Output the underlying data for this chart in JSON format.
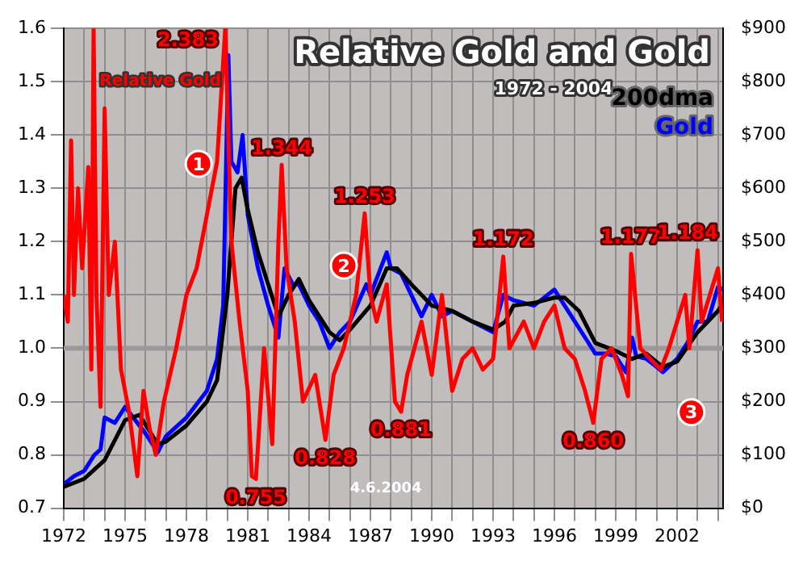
{
  "chart_data": {
    "type": "line",
    "title": "Relative Gold and Gold",
    "subtitle": "1972 - 2004",
    "xlim": [
      1972,
      2004.25
    ],
    "xticks": [
      {
        "value": 1972,
        "label": "1972"
      },
      {
        "value": 1973,
        "label": null
      },
      {
        "value": 1974,
        "label": null
      },
      {
        "value": 1975,
        "label": "1975"
      },
      {
        "value": 1976,
        "label": null
      },
      {
        "value": 1977,
        "label": null
      },
      {
        "value": 1978,
        "label": "1978"
      },
      {
        "value": 1979,
        "label": null
      },
      {
        "value": 1980,
        "label": null
      },
      {
        "value": 1981,
        "label": "1981"
      },
      {
        "value": 1982,
        "label": null
      },
      {
        "value": 1983,
        "label": null
      },
      {
        "value": 1984,
        "label": "1984"
      },
      {
        "value": 1985,
        "label": null
      },
      {
        "value": 1986,
        "label": null
      },
      {
        "value": 1987,
        "label": "1987"
      },
      {
        "value": 1988,
        "label": null
      },
      {
        "value": 1989,
        "label": null
      },
      {
        "value": 1990,
        "label": "1990"
      },
      {
        "value": 1991,
        "label": null
      },
      {
        "value": 1992,
        "label": null
      },
      {
        "value": 1993,
        "label": "1993"
      },
      {
        "value": 1994,
        "label": null
      },
      {
        "value": 1995,
        "label": null
      },
      {
        "value": 1996,
        "label": "1996"
      },
      {
        "value": 1997,
        "label": null
      },
      {
        "value": 1998,
        "label": null
      },
      {
        "value": 1999,
        "label": "1999"
      },
      {
        "value": 2000,
        "label": null
      },
      {
        "value": 2001,
        "label": null
      },
      {
        "value": 2002,
        "label": "2002"
      },
      {
        "value": 2003,
        "label": null
      },
      {
        "value": 2004,
        "label": null
      }
    ],
    "ylim": [
      0.7,
      1.6
    ],
    "yticks": [
      {
        "value": 0.7,
        "label": "0.7"
      },
      {
        "value": 0.8,
        "label": "0.8"
      },
      {
        "value": 0.9,
        "label": "0.9"
      },
      {
        "value": 1.0,
        "label": "1.0"
      },
      {
        "value": 1.1,
        "label": "1.1"
      },
      {
        "value": 1.2,
        "label": "1.2"
      },
      {
        "value": 1.3,
        "label": "1.3"
      },
      {
        "value": 1.4,
        "label": "1.4"
      },
      {
        "value": 1.5,
        "label": "1.5"
      },
      {
        "value": 1.6,
        "label": "1.6"
      }
    ],
    "y2lim": [
      0,
      900
    ],
    "y2ticks": [
      {
        "value": 0,
        "label": "$0"
      },
      {
        "value": 100,
        "label": "$100"
      },
      {
        "value": 200,
        "label": "$200"
      },
      {
        "value": 300,
        "label": "$300"
      },
      {
        "value": 400,
        "label": "$400"
      },
      {
        "value": 500,
        "label": "$500"
      },
      {
        "value": 600,
        "label": "$600"
      },
      {
        "value": 700,
        "label": "$700"
      },
      {
        "value": 800,
        "label": "$800"
      },
      {
        "value": 900,
        "label": "$900"
      }
    ],
    "grid": true,
    "marker": "none",
    "line_style": "solid",
    "ref_lines": [
      {
        "axis": "y",
        "value": 1.0,
        "color": "#999999"
      }
    ],
    "series": [
      {
        "name": "Relative Gold",
        "color": "#ff0000",
        "x": [
          1972.0,
          1972.2,
          1972.36,
          1972.5,
          1972.7,
          1972.9,
          1973.2,
          1973.35,
          1973.46,
          1973.6,
          1973.8,
          1974.0,
          1974.2,
          1974.5,
          1974.8,
          1975.2,
          1975.6,
          1975.9,
          1976.2,
          1976.5,
          1976.9,
          1977.2,
          1977.5,
          1978.0,
          1978.5,
          1979.0,
          1979.5,
          1979.9,
          1980.2,
          1980.6,
          1981.0,
          1981.2,
          1981.4,
          1981.8,
          1982.2,
          1982.5,
          1982.66,
          1982.9,
          1983.3,
          1983.7,
          1984.3,
          1984.8,
          1985.2,
          1985.7,
          1986.3,
          1986.72,
          1987.0,
          1987.3,
          1987.8,
          1988.2,
          1988.5,
          1988.8,
          1989.5,
          1990.0,
          1990.5,
          1991.0,
          1991.5,
          1992.0,
          1992.5,
          1993.0,
          1993.5,
          1993.8,
          1994.5,
          1995.0,
          1995.5,
          1996.0,
          1996.5,
          1997.0,
          1997.5,
          1997.9,
          1998.3,
          1998.8,
          1999.3,
          1999.6,
          1999.75,
          2000.2,
          2000.7,
          2001.2,
          2001.6,
          2002.0,
          2002.4,
          2002.6,
          2003.0,
          2003.2,
          2003.6,
          2004.0,
          2004.2
        ],
        "values": [
          1.1,
          1.05,
          1.39,
          1.1,
          1.3,
          1.15,
          1.34,
          0.96,
          1.6,
          1.1,
          0.89,
          1.45,
          1.1,
          1.2,
          0.96,
          0.88,
          0.76,
          0.92,
          0.85,
          0.8,
          0.9,
          0.95,
          1.0,
          1.1,
          1.15,
          1.25,
          1.35,
          1.6,
          1.2,
          1.05,
          0.92,
          0.76,
          0.755,
          1.0,
          0.82,
          1.2,
          1.344,
          1.15,
          1.05,
          0.9,
          0.95,
          0.828,
          0.95,
          1.0,
          1.1,
          1.253,
          1.1,
          1.05,
          1.12,
          0.9,
          0.881,
          0.95,
          1.05,
          0.95,
          1.1,
          0.92,
          0.98,
          1.0,
          0.96,
          0.98,
          1.172,
          1.0,
          1.05,
          1.0,
          1.05,
          1.08,
          1.0,
          0.98,
          0.92,
          0.86,
          0.98,
          1.0,
          0.95,
          0.91,
          1.177,
          1.0,
          0.98,
          0.96,
          1.0,
          1.05,
          1.1,
          1.0,
          1.184,
          1.05,
          1.1,
          1.15,
          1.05
        ]
      },
      {
        "name": "200dma",
        "color": "#000000",
        "axis": "y2",
        "x": [
          1972.0,
          1973.0,
          1974.0,
          1975.0,
          1975.7,
          1976.6,
          1977.0,
          1978.0,
          1979.0,
          1979.5,
          1980.0,
          1980.4,
          1980.7,
          1981.0,
          1981.5,
          1982.0,
          1982.5,
          1983.0,
          1983.5,
          1984.0,
          1985.0,
          1985.5,
          1986.0,
          1987.0,
          1987.8,
          1988.3,
          1989.0,
          1990.0,
          1991.0,
          1992.0,
          1993.0,
          1993.6,
          1994.0,
          1995.0,
          1996.0,
          1996.5,
          1997.2,
          1998.0,
          1999.0,
          1999.8,
          2000.5,
          2001.3,
          2002.0,
          2003.0,
          2004.0,
          2004.25
        ],
        "values": [
          40,
          55,
          90,
          165,
          175,
          120,
          125,
          155,
          200,
          240,
          400,
          600,
          620,
          560,
          480,
          420,
          360,
          400,
          430,
          390,
          330,
          315,
          335,
          380,
          450,
          450,
          420,
          380,
          370,
          350,
          335,
          350,
          380,
          385,
          395,
          395,
          370,
          310,
          295,
          280,
          290,
          265,
          275,
          330,
          370,
          385
        ]
      },
      {
        "name": "Gold",
        "color": "#0000ff",
        "axis": "y2",
        "x": [
          1972.0,
          1972.5,
          1973.0,
          1973.5,
          1973.8,
          1974.0,
          1974.5,
          1975.0,
          1975.5,
          1976.0,
          1976.6,
          1977.0,
          1978.0,
          1979.0,
          1979.5,
          1979.8,
          1980.05,
          1980.2,
          1980.5,
          1980.75,
          1981.0,
          1981.5,
          1982.0,
          1982.5,
          1982.8,
          1983.2,
          1983.5,
          1984.0,
          1984.5,
          1985.0,
          1985.5,
          1986.0,
          1986.8,
          1987.0,
          1987.8,
          1988.0,
          1988.5,
          1989.0,
          1989.5,
          1990.0,
          1990.5,
          1991.0,
          1992.0,
          1993.0,
          1993.5,
          1994.0,
          1995.0,
          1996.0,
          1996.5,
          1997.0,
          1997.5,
          1998.0,
          1998.5,
          1999.0,
          1999.5,
          1999.8,
          2000.0,
          2000.5,
          2001.0,
          2001.3,
          2002.0,
          2002.5,
          2003.0,
          2003.5,
          2004.0,
          2004.25
        ],
        "values": [
          45,
          60,
          70,
          100,
          110,
          170,
          160,
          190,
          165,
          140,
          105,
          135,
          170,
          220,
          280,
          380,
          850,
          650,
          630,
          700,
          550,
          450,
          380,
          320,
          450,
          420,
          420,
          380,
          350,
          300,
          330,
          350,
          420,
          400,
          480,
          450,
          440,
          400,
          360,
          400,
          360,
          370,
          350,
          330,
          400,
          390,
          380,
          410,
          380,
          350,
          320,
          290,
          290,
          285,
          255,
          320,
          285,
          280,
          265,
          255,
          280,
          310,
          350,
          350,
          415,
          410
        ]
      }
    ],
    "annotations": [
      {
        "text": "2.383",
        "x": 1980.05
      },
      {
        "text": "1.344",
        "x": 1982.66,
        "y": 1.344
      },
      {
        "text": "1.253",
        "x": 1986.72,
        "y": 1.253
      },
      {
        "text": "1.172",
        "x": 1993.5,
        "y": 1.172
      },
      {
        "text": "1.177",
        "x": 1999.75,
        "y": 1.177
      },
      {
        "text": "1.184",
        "x": 2003.0,
        "y": 1.184
      },
      {
        "text": "0.755",
        "x": 1981.4,
        "y": 0.755
      },
      {
        "text": "0.828",
        "x": 1984.8,
        "y": 0.828
      },
      {
        "text": "0.881",
        "x": 1988.5,
        "y": 0.881
      },
      {
        "text": "0.860",
        "x": 1997.9,
        "y": 0.86
      },
      {
        "text": "1",
        "x": 1978.6,
        "y": 1.346
      },
      {
        "text": "2",
        "x": 1985.7,
        "y": 1.155
      },
      {
        "text": "3",
        "x": 2002.7,
        "y": 0.88
      },
      "4.6.2004"
    ]
  }
}
